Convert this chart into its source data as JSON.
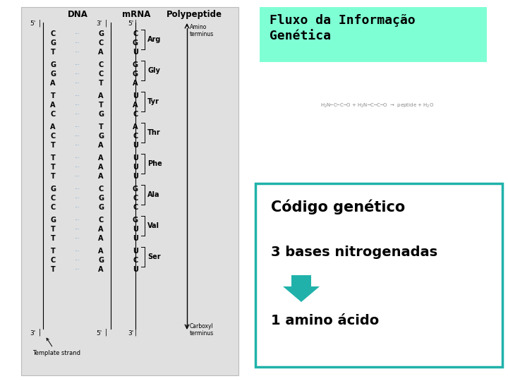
{
  "bg_color": "#ffffff",
  "left_panel_bg": "#e0e0e0",
  "left_panel_border": "#bbbbbb",
  "title_box_bg": "#7fffd4",
  "title_text_line1": "Fluxo da Informação",
  "title_text_line2": "Genética",
  "title_color": "#000000",
  "bottom_box_border": "#20b2aa",
  "bottom_box_bg": "#ffffff",
  "codigo_text": "Código genético",
  "bases_text": "3 bases nitrogenadas",
  "amino_text": "1 amino ácido",
  "arrow_color": "#20b2aa",
  "text_color": "#000000",
  "dna_dot_color": "#6699cc",
  "amino_acids": [
    "Arg",
    "Gly",
    "Tyr",
    "Thr",
    "Phe",
    "Ala",
    "Val",
    "Ser"
  ],
  "codons_dna_left": [
    "C",
    "G",
    "T",
    "G",
    "G",
    "A",
    "T",
    "A",
    "C",
    "A",
    "C",
    "T",
    "T",
    "T",
    "T",
    "G",
    "C",
    "C",
    "G",
    "T",
    "T",
    "T",
    "C",
    "T"
  ],
  "codons_dna_right": [
    "G",
    "C",
    "A",
    "C",
    "C",
    "T",
    "A",
    "T",
    "G",
    "T",
    "G",
    "A",
    "A",
    "A",
    "A",
    "C",
    "G",
    "G",
    "C",
    "A",
    "A",
    "A",
    "G",
    "A"
  ],
  "codons_mrna": [
    "C",
    "G",
    "U",
    "G",
    "G",
    "A",
    "U",
    "A",
    "C",
    "A",
    "C",
    "U",
    "U",
    "U",
    "U",
    "G",
    "C",
    "C",
    "G",
    "U",
    "U",
    "U",
    "C",
    "U"
  ]
}
